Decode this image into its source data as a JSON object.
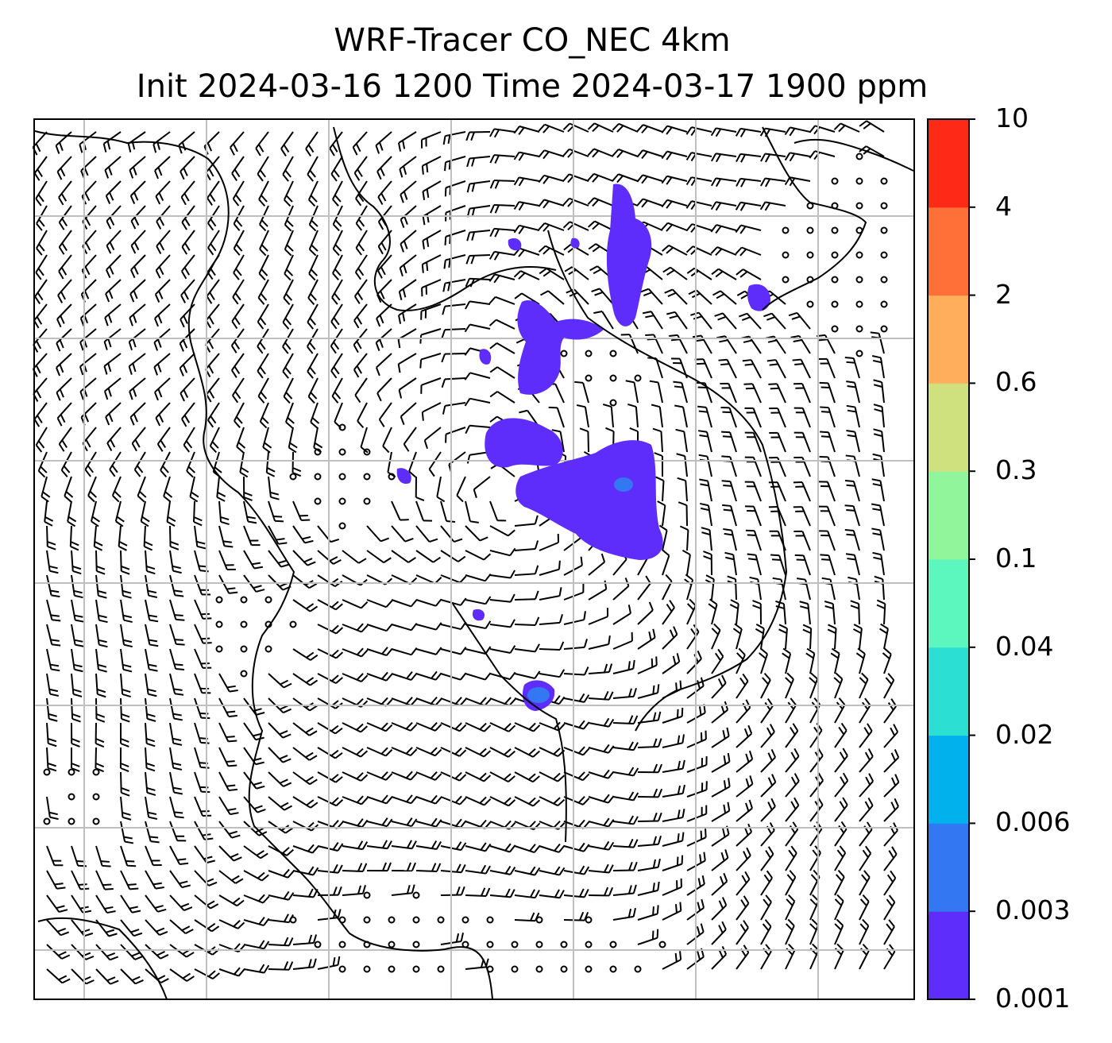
{
  "title": {
    "line1": "WRF-Tracer CO_NEC 4km",
    "line2": "Init 2024-03-16 1200 Time 2024-03-17 1900 ppm"
  },
  "colorbar": {
    "levels": [
      "0.001",
      "0.003",
      "0.006",
      "0.02",
      "0.04",
      "0.1",
      "0.3",
      "0.6",
      "2",
      "4",
      "10"
    ],
    "colors": [
      "#5e2dfb",
      "#3377f2",
      "#00b1ec",
      "#2bdfd2",
      "#5cf7be",
      "#91f59c",
      "#cfe07f",
      "#ffae5c",
      "#ff6f37",
      "#fe2a17"
    ]
  },
  "legend_colors": {
    "frame": "#000000",
    "grid": "#bfbfbf",
    "coast": "#000000",
    "barb": "#000000"
  }
}
